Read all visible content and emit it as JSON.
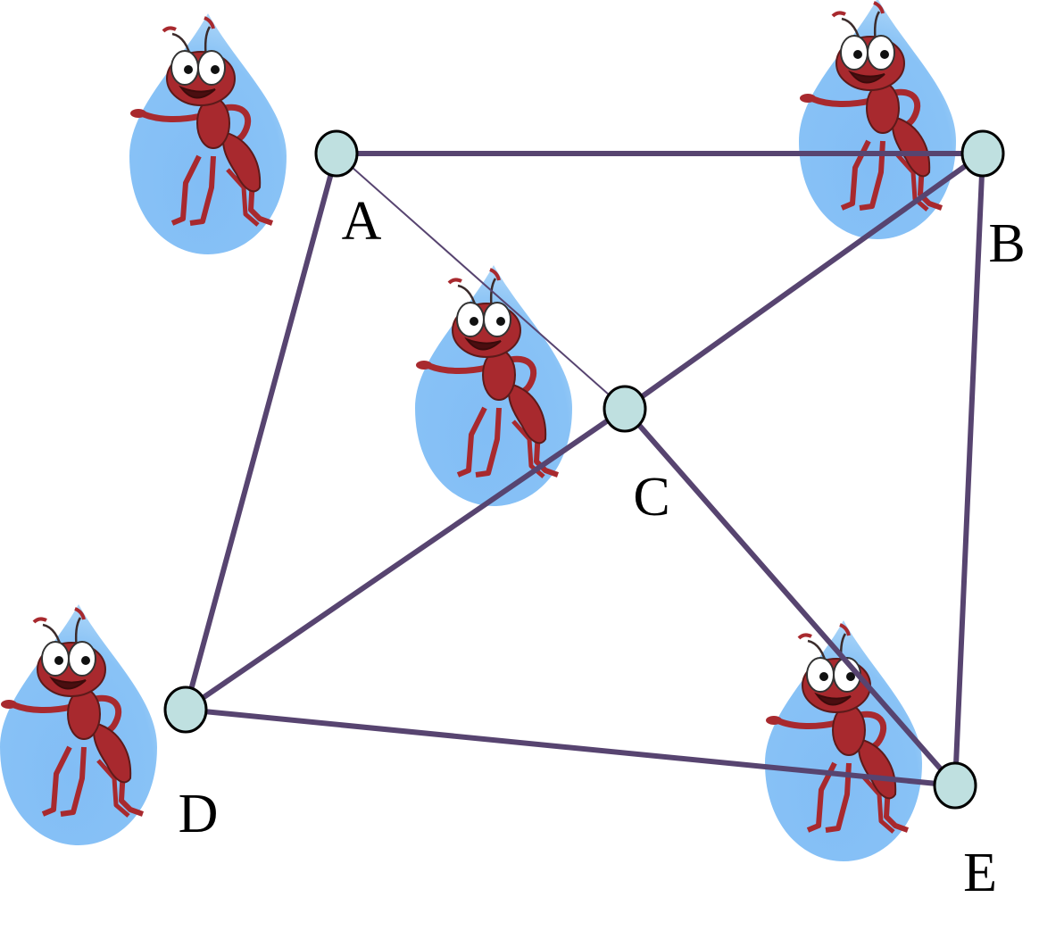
{
  "nodes": [
    {
      "id": "A",
      "label": "A"
    },
    {
      "id": "B",
      "label": "B"
    },
    {
      "id": "C",
      "label": "C"
    },
    {
      "id": "D",
      "label": "D"
    },
    {
      "id": "E",
      "label": "E"
    }
  ],
  "edges": [
    {
      "from": "A",
      "to": "B",
      "weight": "thick"
    },
    {
      "from": "A",
      "to": "C",
      "weight": "thin"
    },
    {
      "from": "A",
      "to": "D",
      "weight": "thick"
    },
    {
      "from": "B",
      "to": "C",
      "weight": "thick"
    },
    {
      "from": "B",
      "to": "E",
      "weight": "thick"
    },
    {
      "from": "C",
      "to": "D",
      "weight": "thick"
    },
    {
      "from": "C",
      "to": "E",
      "weight": "thick"
    },
    {
      "from": "D",
      "to": "E",
      "weight": "thick"
    }
  ],
  "colors": {
    "edge": "#574470",
    "node_fill": "#bfe0e0",
    "node_stroke": "#000000",
    "drop_light": "#9fcff6",
    "drop_dark": "#5aa9ee",
    "ant_body": "#a8292e",
    "ant_outline": "#5d1a1a"
  },
  "decorations": [
    {
      "name": "ant-water-drop",
      "icon": "ant-in-water-drop"
    },
    {
      "name": "ant-water-drop",
      "icon": "ant-in-water-drop"
    },
    {
      "name": "ant-water-drop",
      "icon": "ant-in-water-drop"
    },
    {
      "name": "ant-water-drop",
      "icon": "ant-in-water-drop"
    },
    {
      "name": "ant-water-drop",
      "icon": "ant-in-water-drop"
    }
  ]
}
